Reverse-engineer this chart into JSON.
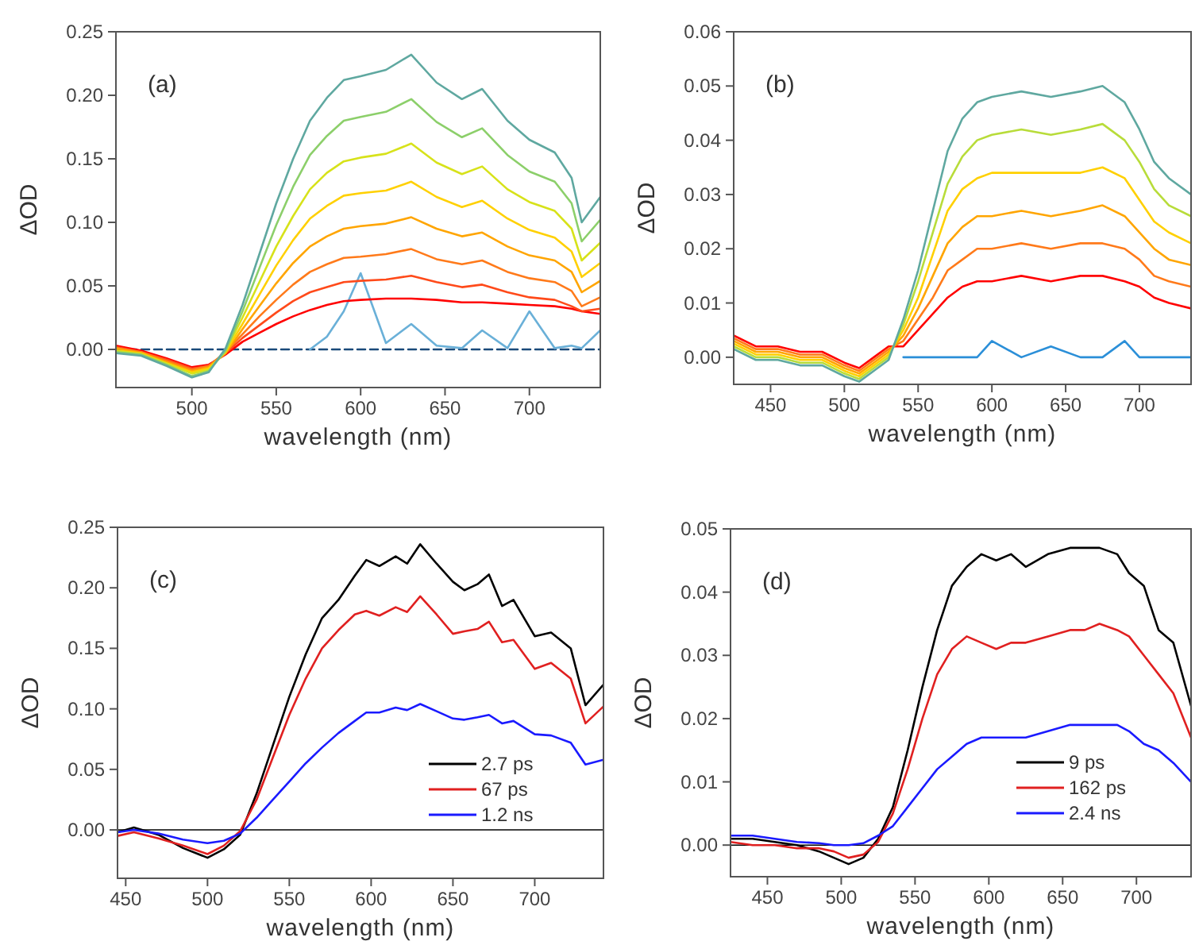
{
  "chart_data": [
    {
      "type": "line",
      "xlabel": "wavelength (nm)",
      "ylabel": "ΔOD",
      "annotations": [
        "(a)"
      ],
      "xlim": [
        455,
        742
      ],
      "ylim": [
        -0.03,
        0.25
      ],
      "xticks": [
        500,
        550,
        600,
        650,
        700
      ],
      "yticks": [
        {
          "value": 0,
          "label": "0.00"
        },
        {
          "value": 0.05,
          "label": "0.05"
        },
        {
          "value": 0.1,
          "label": "0.10"
        },
        {
          "value": 0.15,
          "label": "0.15"
        },
        {
          "value": 0.2,
          "label": "0.20"
        },
        {
          "value": 0.25,
          "label": "0.25"
        }
      ],
      "grid": false,
      "legend": false,
      "marker": "none",
      "x": [
        455,
        470,
        485,
        500,
        510,
        520,
        530,
        540,
        550,
        560,
        570,
        580,
        590,
        600,
        615,
        630,
        645,
        660,
        672,
        687,
        700,
        715,
        725,
        731,
        742
      ],
      "series": [
        {
          "color": "#1a4a7a",
          "line_style": "dashed",
          "values": [
            0,
            0,
            0,
            0,
            0,
            0,
            0,
            0,
            0,
            0,
            0,
            0,
            0,
            0,
            0,
            0,
            0,
            0,
            0,
            0,
            0,
            0,
            0,
            0,
            0
          ]
        },
        {
          "color": "#6ab0d8",
          "values": [
            null,
            null,
            null,
            null,
            null,
            null,
            null,
            null,
            null,
            null,
            0,
            0.01,
            0.03,
            0.06,
            0.005,
            0.02,
            0.003,
            0.001,
            0.015,
            0.001,
            0.03,
            0.001,
            0.003,
            0.001,
            0.015
          ]
        },
        {
          "color": "#ff0000",
          "values": [
            0.003,
            -0.001,
            -0.007,
            -0.014,
            -0.012,
            -0.004,
            0.006,
            0.013,
            0.02,
            0.026,
            0.031,
            0.035,
            0.038,
            0.039,
            0.04,
            0.04,
            0.039,
            0.037,
            0.037,
            0.036,
            0.035,
            0.034,
            0.032,
            0.03,
            0.028
          ]
        },
        {
          "color": "#ff4a1a",
          "values": [
            0.002,
            -0.002,
            -0.008,
            -0.015,
            -0.013,
            -0.003,
            0.009,
            0.019,
            0.029,
            0.038,
            0.045,
            0.049,
            0.053,
            0.054,
            0.055,
            0.058,
            0.053,
            0.049,
            0.051,
            0.045,
            0.041,
            0.039,
            0.034,
            0.03,
            0.032
          ]
        },
        {
          "color": "#ff7a1a",
          "values": [
            0.001,
            -0.002,
            -0.009,
            -0.016,
            -0.013,
            -0.002,
            0.012,
            0.026,
            0.039,
            0.051,
            0.061,
            0.067,
            0.072,
            0.073,
            0.075,
            0.079,
            0.071,
            0.067,
            0.07,
            0.061,
            0.056,
            0.053,
            0.046,
            0.034,
            0.041
          ]
        },
        {
          "color": "#ffa500",
          "values": [
            0.001,
            -0.003,
            -0.01,
            -0.017,
            -0.014,
            -0.003,
            0.016,
            0.034,
            0.052,
            0.068,
            0.081,
            0.089,
            0.095,
            0.097,
            0.099,
            0.104,
            0.095,
            0.089,
            0.092,
            0.081,
            0.074,
            0.07,
            0.061,
            0.045,
            0.054
          ]
        },
        {
          "color": "#ffd000",
          "values": [
            -0.001,
            -0.003,
            -0.011,
            -0.018,
            -0.015,
            -0.002,
            0.02,
            0.043,
            0.066,
            0.086,
            0.103,
            0.113,
            0.121,
            0.123,
            0.125,
            0.132,
            0.12,
            0.112,
            0.117,
            0.103,
            0.094,
            0.088,
            0.077,
            0.057,
            0.068
          ]
        },
        {
          "color": "#d7e21a",
          "values": [
            -0.001,
            -0.004,
            -0.011,
            -0.019,
            -0.016,
            -0.001,
            0.025,
            0.053,
            0.081,
            0.105,
            0.126,
            0.139,
            0.148,
            0.151,
            0.154,
            0.162,
            0.147,
            0.138,
            0.144,
            0.126,
            0.116,
            0.109,
            0.095,
            0.07,
            0.084
          ]
        },
        {
          "color": "#8ccf6a",
          "values": [
            -0.002,
            -0.004,
            -0.012,
            -0.021,
            -0.017,
            -0.001,
            0.03,
            0.064,
            0.098,
            0.128,
            0.153,
            0.168,
            0.18,
            0.183,
            0.187,
            0.197,
            0.179,
            0.167,
            0.174,
            0.153,
            0.14,
            0.132,
            0.115,
            0.085,
            0.102
          ]
        },
        {
          "color": "#5fa8a0",
          "values": [
            -0.003,
            -0.005,
            -0.013,
            -0.022,
            -0.018,
            0.001,
            0.035,
            0.075,
            0.115,
            0.15,
            0.18,
            0.198,
            0.212,
            0.215,
            0.22,
            0.232,
            0.21,
            0.197,
            0.205,
            0.18,
            0.165,
            0.155,
            0.135,
            0.1,
            0.12
          ]
        }
      ]
    },
    {
      "type": "line",
      "xlabel": "wavelength (nm)",
      "ylabel": "ΔOD",
      "annotations": [
        "(b)"
      ],
      "xlim": [
        425,
        735
      ],
      "ylim": [
        -0.005,
        0.06
      ],
      "xticks": [
        450,
        500,
        550,
        600,
        650,
        700
      ],
      "yticks": [
        {
          "value": 0,
          "label": "0.00"
        },
        {
          "value": 0.01,
          "label": "0.01"
        },
        {
          "value": 0.02,
          "label": "0.02"
        },
        {
          "value": 0.03,
          "label": "0.03"
        },
        {
          "value": 0.04,
          "label": "0.04"
        },
        {
          "value": 0.05,
          "label": "0.05"
        },
        {
          "value": 0.06,
          "label": "0.06"
        }
      ],
      "grid": false,
      "legend": false,
      "marker": "none",
      "x": [
        425,
        440,
        455,
        470,
        485,
        500,
        510,
        520,
        530,
        540,
        550,
        560,
        570,
        580,
        590,
        600,
        620,
        640,
        660,
        675,
        690,
        700,
        710,
        720,
        735
      ],
      "series": [
        {
          "color": "#2b8fd8",
          "values": [
            null,
            null,
            null,
            null,
            null,
            null,
            null,
            null,
            null,
            0,
            0,
            0,
            0,
            0,
            0,
            0.003,
            0,
            0.002,
            0,
            0,
            0.003,
            0,
            0,
            0,
            0
          ]
        },
        {
          "color": "#ff0000",
          "values": [
            0.004,
            0.002,
            0.002,
            0.001,
            0.001,
            -0.001,
            -0.002,
            0,
            0.002,
            0.002,
            0.005,
            0.008,
            0.011,
            0.013,
            0.014,
            0.014,
            0.015,
            0.014,
            0.015,
            0.015,
            0.014,
            0.013,
            0.011,
            0.01,
            0.009
          ]
        },
        {
          "color": "#ff7a1a",
          "values": [
            0.0035,
            0.0015,
            0.0015,
            0.0005,
            0.0005,
            -0.0015,
            -0.0025,
            -0.0005,
            0.0015,
            0.003,
            0.007,
            0.011,
            0.016,
            0.018,
            0.02,
            0.02,
            0.021,
            0.02,
            0.021,
            0.021,
            0.02,
            0.018,
            0.015,
            0.014,
            0.013
          ]
        },
        {
          "color": "#ffa500",
          "values": [
            0.003,
            0.001,
            0.001,
            0,
            0,
            -0.002,
            -0.003,
            -0.001,
            0.001,
            0.004,
            0.009,
            0.015,
            0.021,
            0.024,
            0.026,
            0.026,
            0.027,
            0.026,
            0.027,
            0.028,
            0.026,
            0.023,
            0.02,
            0.018,
            0.017
          ]
        },
        {
          "color": "#ffd000",
          "values": [
            0.0025,
            0.0005,
            0.0005,
            -0.0005,
            -0.0005,
            -0.0025,
            -0.0035,
            -0.0015,
            0.0005,
            0.005,
            0.011,
            0.019,
            0.027,
            0.031,
            0.033,
            0.034,
            0.034,
            0.034,
            0.034,
            0.035,
            0.033,
            0.029,
            0.025,
            0.023,
            0.021
          ]
        },
        {
          "color": "#b8dc3a",
          "values": [
            0.002,
            0,
            0,
            -0.001,
            -0.001,
            -0.003,
            -0.004,
            -0.002,
            0,
            0.006,
            0.014,
            0.023,
            0.032,
            0.037,
            0.04,
            0.041,
            0.042,
            0.041,
            0.042,
            0.043,
            0.04,
            0.036,
            0.031,
            0.028,
            0.026
          ]
        },
        {
          "color": "#5fa8a0",
          "values": [
            0.0015,
            -0.0005,
            -0.0005,
            -0.0015,
            -0.0015,
            -0.0035,
            -0.0045,
            -0.0025,
            -0.0005,
            0.007,
            0.016,
            0.027,
            0.038,
            0.044,
            0.047,
            0.048,
            0.049,
            0.048,
            0.049,
            0.05,
            0.047,
            0.042,
            0.036,
            0.033,
            0.03
          ]
        }
      ]
    },
    {
      "type": "line",
      "xlabel": "wavelength (nm)",
      "ylabel": "ΔOD",
      "annotations": [
        "(c)"
      ],
      "xlim": [
        445,
        742
      ],
      "ylim": [
        -0.04,
        0.25
      ],
      "xticks": [
        450,
        500,
        550,
        600,
        650,
        700
      ],
      "yticks": [
        {
          "value": 0,
          "label": "0.00"
        },
        {
          "value": 0.05,
          "label": "0.05"
        },
        {
          "value": 0.1,
          "label": "0.10"
        },
        {
          "value": 0.15,
          "label": "0.15"
        },
        {
          "value": 0.2,
          "label": "0.20"
        },
        {
          "value": 0.25,
          "label": "0.25"
        }
      ],
      "grid": false,
      "legend": "right",
      "marker": "none",
      "ref_lines": [
        {
          "axis": "y",
          "value": 0,
          "color": "#000000"
        }
      ],
      "x": [
        445,
        455,
        470,
        485,
        500,
        510,
        520,
        530,
        540,
        550,
        560,
        570,
        580,
        590,
        597,
        605,
        615,
        622,
        630,
        640,
        650,
        657,
        665,
        672,
        680,
        687,
        700,
        710,
        722,
        731,
        742
      ],
      "series": [
        {
          "name": "2.7 ps",
          "color": "#000000",
          "values": [
            -0.002,
            0.002,
            -0.004,
            -0.015,
            -0.023,
            -0.016,
            -0.004,
            0.03,
            0.07,
            0.11,
            0.145,
            0.175,
            0.19,
            0.21,
            0.223,
            0.218,
            0.226,
            0.22,
            0.236,
            0.22,
            0.205,
            0.198,
            0.203,
            0.211,
            0.185,
            0.19,
            0.16,
            0.163,
            0.15,
            0.103,
            0.12
          ]
        },
        {
          "name": "67 ps",
          "color": "#e02020",
          "values": [
            -0.005,
            -0.002,
            -0.007,
            -0.013,
            -0.02,
            -0.013,
            -0.001,
            0.025,
            0.06,
            0.095,
            0.125,
            0.15,
            0.165,
            0.178,
            0.181,
            0.177,
            0.184,
            0.18,
            0.193,
            0.178,
            0.162,
            0.164,
            0.166,
            0.172,
            0.155,
            0.157,
            0.133,
            0.138,
            0.125,
            0.088,
            0.102
          ]
        },
        {
          "name": "1.2 ns",
          "color": "#1a1aff",
          "values": [
            -0.002,
            0,
            -0.003,
            -0.008,
            -0.011,
            -0.009,
            -0.003,
            0.01,
            0.025,
            0.04,
            0.055,
            0.068,
            0.08,
            0.09,
            0.097,
            0.097,
            0.101,
            0.099,
            0.104,
            0.098,
            0.092,
            0.091,
            0.093,
            0.095,
            0.088,
            0.09,
            0.079,
            0.078,
            0.072,
            0.054,
            0.058
          ]
        }
      ]
    },
    {
      "type": "line",
      "xlabel": "wavelength (nm)",
      "ylabel": "ΔOD",
      "annotations": [
        "(d)"
      ],
      "xlim": [
        425,
        737
      ],
      "ylim": [
        -0.005,
        0.05
      ],
      "xticks": [
        450,
        500,
        550,
        600,
        650,
        700
      ],
      "yticks": [
        {
          "value": 0,
          "label": "0.00"
        },
        {
          "value": 0.01,
          "label": "0.01"
        },
        {
          "value": 0.02,
          "label": "0.02"
        },
        {
          "value": 0.03,
          "label": "0.03"
        },
        {
          "value": 0.04,
          "label": "0.04"
        },
        {
          "value": 0.05,
          "label": "0.05"
        }
      ],
      "grid": false,
      "legend": "right",
      "marker": "none",
      "ref_lines": [
        {
          "axis": "y",
          "value": 0,
          "color": "#000000"
        }
      ],
      "x": [
        425,
        440,
        455,
        470,
        485,
        495,
        505,
        515,
        525,
        535,
        545,
        555,
        565,
        575,
        585,
        595,
        605,
        615,
        625,
        640,
        655,
        665,
        675,
        687,
        695,
        705,
        715,
        725,
        737
      ],
      "series": [
        {
          "name": "9 ps",
          "color": "#000000",
          "values": [
            0.001,
            0.001,
            0.0005,
            0,
            -0.001,
            -0.002,
            -0.003,
            -0.002,
            0.001,
            0.006,
            0.015,
            0.025,
            0.034,
            0.041,
            0.044,
            0.046,
            0.045,
            0.046,
            0.044,
            0.046,
            0.047,
            0.047,
            0.047,
            0.046,
            0.043,
            0.041,
            0.034,
            0.032,
            0.022
          ]
        },
        {
          "name": "162 ps",
          "color": "#e02020",
          "values": [
            0.0005,
            0,
            0,
            -0.0005,
            -0.0005,
            -0.001,
            -0.002,
            -0.0015,
            0.0005,
            0.005,
            0.012,
            0.02,
            0.027,
            0.031,
            0.033,
            0.032,
            0.031,
            0.032,
            0.032,
            0.033,
            0.034,
            0.034,
            0.035,
            0.034,
            0.033,
            0.03,
            0.027,
            0.024,
            0.017
          ]
        },
        {
          "name": "2.4 ns",
          "color": "#1a1aff",
          "values": [
            0.0015,
            0.0015,
            0.001,
            0.0005,
            0.0003,
            0,
            0,
            0.0003,
            0.0015,
            0.003,
            0.006,
            0.009,
            0.012,
            0.014,
            0.016,
            0.017,
            0.017,
            0.017,
            0.017,
            0.018,
            0.019,
            0.019,
            0.019,
            0.019,
            0.018,
            0.016,
            0.015,
            0.013,
            0.01
          ]
        }
      ]
    }
  ]
}
